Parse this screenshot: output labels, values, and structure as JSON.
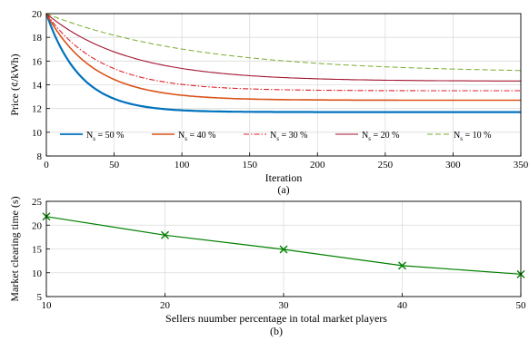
{
  "chart_data": [
    {
      "type": "line",
      "caption": "(a)",
      "xlabel": "Iteration",
      "ylabel": "Price (¢/kWh)",
      "xlim": [
        0,
        350
      ],
      "ylim": [
        8,
        20
      ],
      "xticks": [
        0,
        50,
        100,
        150,
        200,
        250,
        300,
        350
      ],
      "yticks": [
        8,
        10,
        12,
        14,
        16,
        18,
        20
      ],
      "grid": true,
      "legend_position": "bottom",
      "series": [
        {
          "name": "N_s = 50 %",
          "label_main": "N",
          "label_sub": "s",
          "label_rest": " = 50 %",
          "color": "#0072BD",
          "style": "solid",
          "width": 2.2,
          "start": 20,
          "end": 11.7,
          "tau": 25
        },
        {
          "name": "N_s = 40 %",
          "label_main": "N",
          "label_sub": "s",
          "label_rest": " = 40 %",
          "color": "#D95319",
          "style": "solid",
          "width": 1.6,
          "start": 20,
          "end": 12.7,
          "tau": 35
        },
        {
          "name": "N_s = 30 %",
          "label_main": "N",
          "label_sub": "s",
          "label_rest": " = 30 %",
          "color": "#E0202A",
          "style": "dashdot",
          "width": 1.1,
          "start": 20,
          "end": 13.5,
          "tau": 40
        },
        {
          "name": "N_s = 20 %",
          "label_main": "N",
          "label_sub": "s",
          "label_rest": " = 20 %",
          "color": "#A2142F",
          "style": "solid",
          "width": 1.1,
          "start": 20,
          "end": 14.3,
          "tau": 60
        },
        {
          "name": "N_s = 10 %",
          "label_main": "N",
          "label_sub": "s",
          "label_rest": " = 10 %",
          "color": "#77AC30",
          "style": "dashed",
          "width": 1.0,
          "start": 20,
          "end": 15.0,
          "tau": 110
        }
      ]
    },
    {
      "type": "line",
      "caption": "(b)",
      "xlabel": "Sellers nuumber percentage in total market players",
      "ylabel": "Market clearing time (s)",
      "xlim": [
        10,
        50
      ],
      "ylim": [
        5,
        25
      ],
      "xticks": [
        10,
        20,
        30,
        40,
        50
      ],
      "yticks": [
        5,
        10,
        15,
        20,
        25
      ],
      "grid": true,
      "series": [
        {
          "color": "#008000",
          "marker": "x",
          "x": [
            10,
            20,
            30,
            40,
            50
          ],
          "y": [
            21.8,
            17.9,
            14.9,
            11.5,
            9.7
          ]
        }
      ]
    }
  ]
}
